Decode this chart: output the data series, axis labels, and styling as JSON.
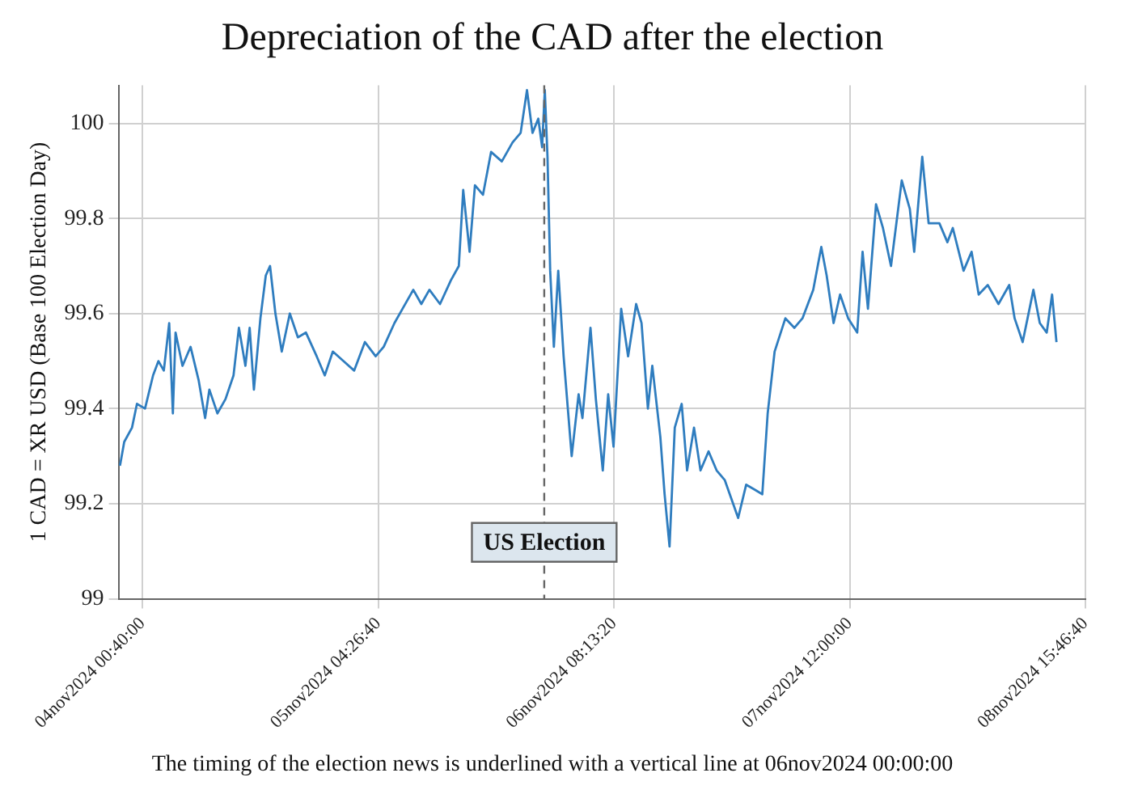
{
  "chart_data": {
    "type": "line",
    "title": "Depreciation of the CAD after the election",
    "ylabel": "1 CAD = XR USD (Base 100 Election Day)",
    "annotations": [
      "The timing of the election news is underlined with a vertical line at 06nov2024 00:00:00"
    ],
    "xlim": [
      "2024-11-03T21:50",
      "2024-11-08T15:46:40"
    ],
    "xticks": [
      {
        "value": "2024-11-04T00:40",
        "label": "04nov2024 00:40:00"
      },
      {
        "value": "2024-11-05T04:26:40",
        "label": "05nov2024 04:26:40"
      },
      {
        "value": "2024-11-06T08:13:20",
        "label": "06nov2024 08:13:20"
      },
      {
        "value": "2024-11-07T12:00",
        "label": "07nov2024 12:00:00"
      },
      {
        "value": "2024-11-08T15:46:40",
        "label": "08nov2024 15:46:40"
      }
    ],
    "ylim": [
      99,
      100.08
    ],
    "yticks": [
      99,
      99.2,
      99.4,
      99.6,
      99.8,
      100
    ],
    "grid": true,
    "legend": false,
    "marker": "none",
    "line_style": "solid",
    "ref_lines": [
      {
        "axis": "x",
        "value": "2024-11-06T00:00",
        "label": "US Election",
        "color": "#666666",
        "line_style": "dashed"
      }
    ],
    "series": [
      {
        "color": "#2f7dbf",
        "x": [
          "2024-11-03T22:00",
          "2024-11-03T22:30",
          "2024-11-03T23:25",
          "2024-11-04T00:00",
          "2024-11-04T00:57",
          "2024-11-04T01:54",
          "2024-11-04T02:32",
          "2024-11-04T03:10",
          "2024-11-04T03:48",
          "2024-11-04T04:14",
          "2024-11-04T04:33",
          "2024-11-04T05:22",
          "2024-11-04T06:19",
          "2024-11-04T07:16",
          "2024-11-04T08:02",
          "2024-11-04T08:32",
          "2024-11-04T09:29",
          "2024-11-04T10:26",
          "2024-11-04T11:23",
          "2024-11-04T12:01",
          "2024-11-04T12:47",
          "2024-11-04T13:17",
          "2024-11-04T13:47",
          "2024-11-04T14:33",
          "2024-11-04T15:11",
          "2024-11-04T15:41",
          "2024-11-04T16:19",
          "2024-11-04T17:04",
          "2024-11-04T18:01",
          "2024-11-04T18:58",
          "2024-11-04T19:55",
          "2024-11-04T21:11",
          "2024-11-04T22:08",
          "2024-11-04T23:05",
          "2024-11-05T00:20",
          "2024-11-05T01:36",
          "2024-11-05T02:52",
          "2024-11-05T04:08",
          "2024-11-05T05:05",
          "2024-11-05T06:21",
          "2024-11-05T07:18",
          "2024-11-05T08:34",
          "2024-11-05T09:31",
          "2024-11-05T10:28",
          "2024-11-05T11:43",
          "2024-11-05T13:00",
          "2024-11-05T13:56",
          "2024-11-05T14:27",
          "2024-11-05T15:12",
          "2024-11-05T15:50",
          "2024-11-05T16:47",
          "2024-11-05T17:44",
          "2024-11-05T19:00",
          "2024-11-05T20:16",
          "2024-11-05T21:13",
          "2024-11-05T21:58",
          "2024-11-05T22:37",
          "2024-11-05T23:18",
          "2024-11-05T23:45",
          "2024-11-06T00:04",
          "2024-11-06T00:23",
          "2024-11-06T00:42",
          "2024-11-06T01:08",
          "2024-11-06T01:39",
          "2024-11-06T02:17",
          "2024-11-06T03:14",
          "2024-11-06T04:03",
          "2024-11-06T04:30",
          "2024-11-06T05:27",
          "2024-11-06T06:05",
          "2024-11-06T06:54",
          "2024-11-06T07:32",
          "2024-11-06T08:10",
          "2024-11-06T09:04",
          "2024-11-06T09:53",
          "2024-11-06T10:50",
          "2024-11-06T11:28",
          "2024-11-06T12:13",
          "2024-11-06T12:44",
          "2024-11-06T13:41",
          "2024-11-06T14:11",
          "2024-11-06T14:46",
          "2024-11-06T15:23",
          "2024-11-06T16:12",
          "2024-11-06T16:50",
          "2024-11-06T17:39",
          "2024-11-06T18:25",
          "2024-11-06T19:22",
          "2024-11-06T20:19",
          "2024-11-06T21:16",
          "2024-11-06T22:51",
          "2024-11-06T23:48",
          "2024-11-07T00:45",
          "2024-11-07T01:42",
          "2024-11-07T02:20",
          "2024-11-07T03:09",
          "2024-11-07T04:25",
          "2024-11-07T05:29",
          "2024-11-07T06:26",
          "2024-11-07T07:42",
          "2024-11-07T08:39",
          "2024-11-07T09:17",
          "2024-11-07T10:06",
          "2024-11-07T10:52",
          "2024-11-07T11:49",
          "2024-11-07T12:53",
          "2024-11-07T13:31",
          "2024-11-07T14:09",
          "2024-11-07T15:06",
          "2024-11-07T15:55",
          "2024-11-07T16:52",
          "2024-11-07T18:08",
          "2024-11-07T19:05",
          "2024-11-07T19:36",
          "2024-11-07T20:33",
          "2024-11-07T21:18",
          "2024-11-07T22:34",
          "2024-11-07T23:31",
          "2024-11-08T00:09",
          "2024-11-08T01:25",
          "2024-11-08T02:22",
          "2024-11-08T03:12",
          "2024-11-08T04:16",
          "2024-11-08T05:32",
          "2024-11-08T06:48",
          "2024-11-08T07:26",
          "2024-11-08T08:23",
          "2024-11-08T09:39",
          "2024-11-08T10:24",
          "2024-11-08T11:13",
          "2024-11-08T11:51",
          "2024-11-08T12:22"
        ],
        "values": [
          99.28,
          99.33,
          99.36,
          99.41,
          99.4,
          99.47,
          99.5,
          99.48,
          99.58,
          99.39,
          99.56,
          99.49,
          99.53,
          99.46,
          99.38,
          99.44,
          99.39,
          99.42,
          99.47,
          99.57,
          99.49,
          99.57,
          99.44,
          99.59,
          99.68,
          99.7,
          99.6,
          99.52,
          99.6,
          99.55,
          99.56,
          99.51,
          99.47,
          99.52,
          99.5,
          99.48,
          99.54,
          99.51,
          99.53,
          99.58,
          99.61,
          99.65,
          99.62,
          99.65,
          99.62,
          99.67,
          99.7,
          99.86,
          99.73,
          99.87,
          99.85,
          99.94,
          99.92,
          99.96,
          99.98,
          100.07,
          99.98,
          100.01,
          99.95,
          100.07,
          99.93,
          99.69,
          99.53,
          99.69,
          99.51,
          99.3,
          99.43,
          99.38,
          99.57,
          99.42,
          99.27,
          99.43,
          99.32,
          99.61,
          99.51,
          99.62,
          99.58,
          99.4,
          99.49,
          99.34,
          99.22,
          99.11,
          99.36,
          99.41,
          99.27,
          99.36,
          99.27,
          99.31,
          99.27,
          99.25,
          99.17,
          99.24,
          99.23,
          99.22,
          99.39,
          99.52,
          99.59,
          99.57,
          99.59,
          99.65,
          99.74,
          99.68,
          99.58,
          99.64,
          99.59,
          99.56,
          99.73,
          99.61,
          99.83,
          99.78,
          99.7,
          99.88,
          99.82,
          99.73,
          99.93,
          99.79,
          99.79,
          99.75,
          99.78,
          99.69,
          99.73,
          99.64,
          99.66,
          99.62,
          99.66,
          99.59,
          99.54,
          99.65,
          99.58,
          99.56,
          99.64,
          99.54
        ]
      }
    ]
  }
}
